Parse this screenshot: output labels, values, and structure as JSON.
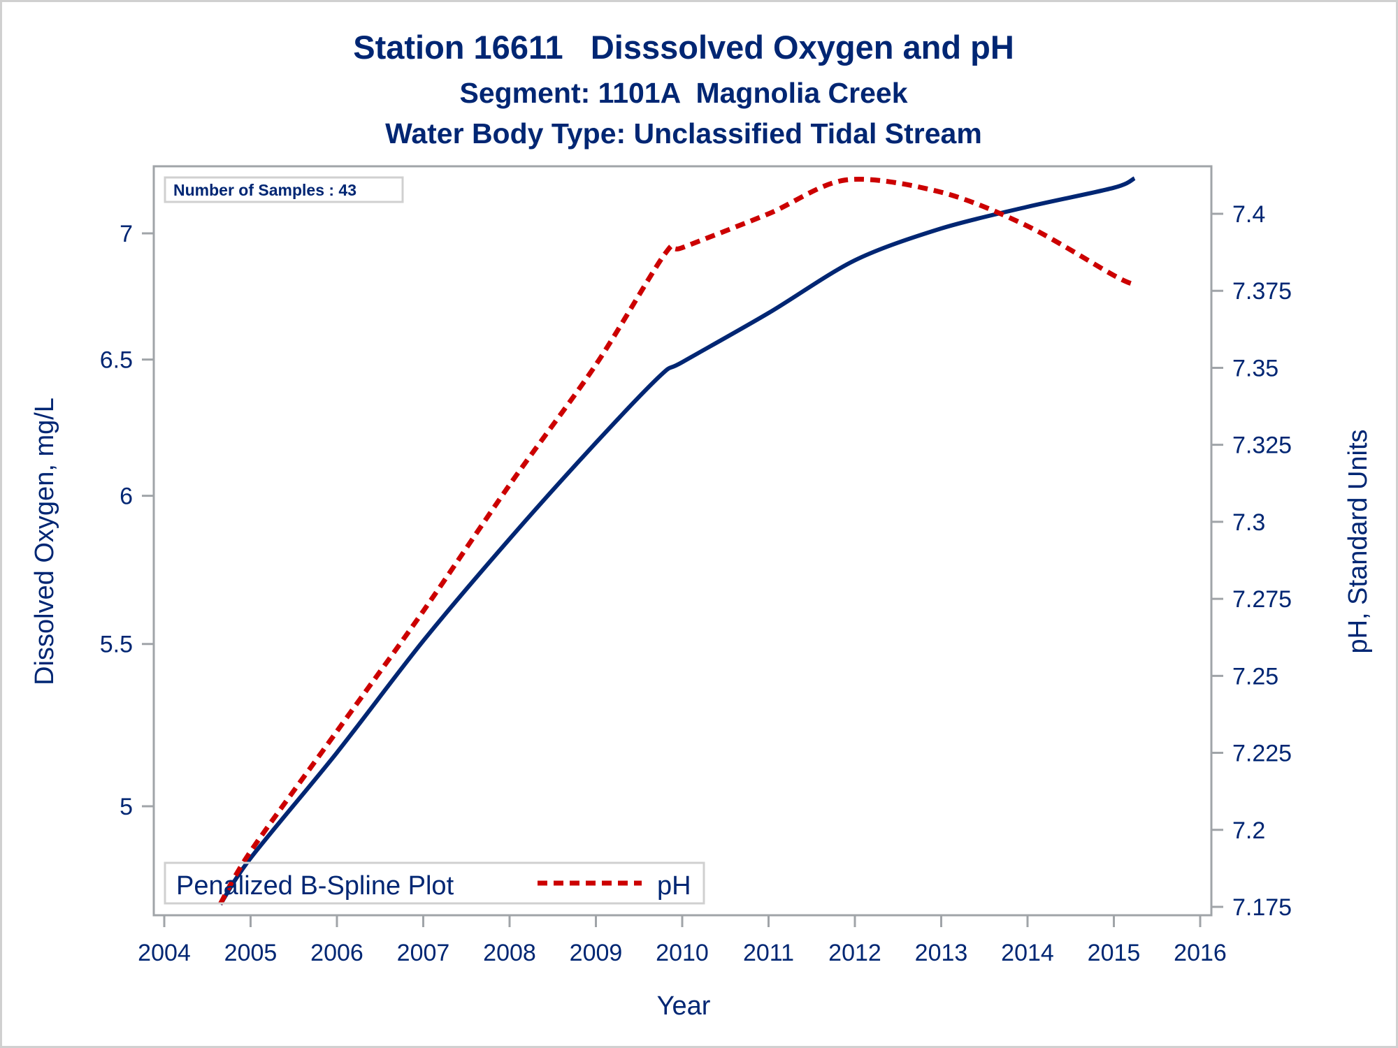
{
  "chart_data": {
    "type": "line",
    "title": "Station 16611   Disssolved Oxygen and pH",
    "subtitle": "Segment: 1101A  Magnolia Creek",
    "subtitle2": "Water Body Type: Unclassified Tidal Stream",
    "xlabel": "Year",
    "ylabel": "Dissolved Oxygen, mg/L",
    "y2label": "pH, Standard Units",
    "xlim": [
      2004,
      2016
    ],
    "ylim": [
      4.72,
      7.27
    ],
    "yscale": "log",
    "y2lim": [
      7.1725,
      7.4165
    ],
    "y2scale": "linear",
    "grid": false,
    "x_ticks": [
      "2004",
      "2005",
      "2006",
      "2007",
      "2008",
      "2009",
      "2010",
      "2011",
      "2012",
      "2013",
      "2014",
      "2015",
      "2016"
    ],
    "y_ticks": [
      "5",
      "5.5",
      "6",
      "6.5",
      "7"
    ],
    "y2_ticks": [
      "7.175",
      "7.2",
      "7.225",
      "7.25",
      "7.275",
      "7.3",
      "7.325",
      "7.35",
      "7.375",
      "7.4"
    ],
    "annotation": "Number of Samples : 43",
    "legend": {
      "placement": "bottom-left",
      "entries": [
        {
          "label": "Penalized B-Spline Plot",
          "style": "title"
        },
        {
          "label": "pH",
          "style": "dashed",
          "color": "#cc0000"
        }
      ]
    },
    "series": [
      {
        "name": "Dissolved Oxygen",
        "axis": "left",
        "style": "solid",
        "color": "#002673",
        "x": [
          2004.65,
          2005,
          2006,
          2007,
          2008,
          2009,
          2009.75,
          2010,
          2011,
          2012,
          2013,
          2014,
          2015,
          2015.24
        ],
        "values": [
          4.72,
          4.85,
          5.16,
          5.51,
          5.85,
          6.19,
          6.44,
          6.49,
          6.68,
          6.89,
          7.02,
          7.11,
          7.19,
          7.23
        ]
      },
      {
        "name": "pH",
        "axis": "right",
        "style": "dashed",
        "color": "#cc0000",
        "x": [
          2004.65,
          2005,
          2006,
          2007,
          2008,
          2009,
          2009.8,
          2010,
          2011,
          2011.9,
          2013,
          2014,
          2015,
          2015.24
        ],
        "values": [
          7.176,
          7.193,
          7.232,
          7.271,
          7.312,
          7.351,
          7.387,
          7.389,
          7.4,
          7.411,
          7.407,
          7.396,
          7.38,
          7.377
        ]
      }
    ]
  },
  "colors": {
    "text": "#002673",
    "do_line": "#002673",
    "ph_line": "#cc0000",
    "axis": "#a0a4a8",
    "frame": "#d0d0d0"
  }
}
